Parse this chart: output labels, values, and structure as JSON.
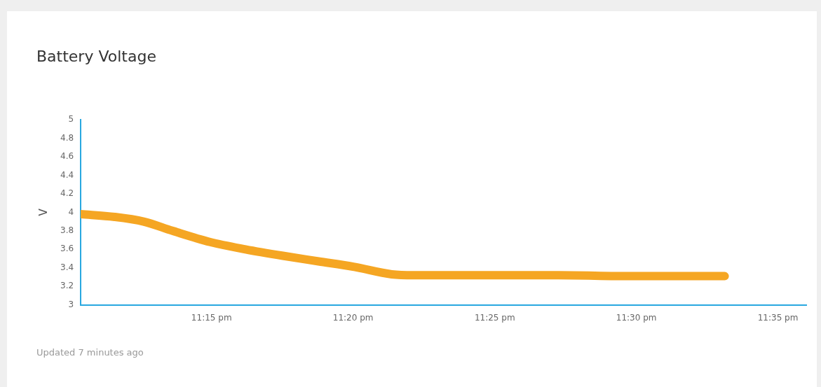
{
  "chart_data": {
    "type": "line",
    "title": "Battery Voltage",
    "ylabel": "V",
    "annotations": [
      "Updated 7 minutes ago"
    ],
    "x": [
      23.173,
      23.193,
      23.21,
      23.227,
      23.249,
      23.27,
      23.292,
      23.313,
      23.334,
      23.356,
      23.369,
      23.412,
      23.454,
      23.497,
      23.552
    ],
    "series": [
      {
        "color": "#f5a623",
        "values": [
          3.98,
          3.95,
          3.9,
          3.8,
          3.68,
          3.6,
          3.53,
          3.47,
          3.41,
          3.33,
          3.32,
          3.32,
          3.32,
          3.31,
          3.31
        ]
      }
    ],
    "xlim": [
      23.173,
      23.6
    ],
    "xticks": [
      {
        "value": 23.25,
        "label": "11:15 pm"
      },
      {
        "value": 23.3333,
        "label": "11:20 pm"
      },
      {
        "value": 23.4167,
        "label": "11:25 pm"
      },
      {
        "value": 23.5,
        "label": "11:30 pm"
      },
      {
        "value": 23.5833,
        "label": "11:35 pm"
      }
    ],
    "ylim": [
      3,
      5
    ],
    "yticks": [
      3,
      3.2,
      3.4,
      3.6,
      3.8,
      4,
      4.2,
      4.4,
      4.6,
      4.8,
      5
    ],
    "grid": false,
    "legend": false,
    "marker": "none",
    "line_style": "solid"
  }
}
